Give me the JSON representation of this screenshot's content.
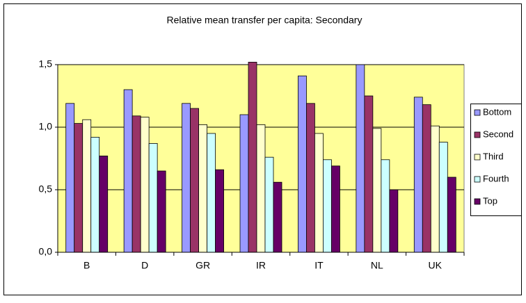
{
  "chart_data": {
    "type": "bar",
    "title": "Relative mean transfer per capita: Secondary",
    "categories": [
      "B",
      "D",
      "GR",
      "IR",
      "IT",
      "NL",
      "UK"
    ],
    "series": [
      {
        "name": "Bottom",
        "color": "#9999ff",
        "values": [
          1.19,
          1.3,
          1.19,
          1.1,
          1.41,
          1.5,
          1.24
        ]
      },
      {
        "name": "Second",
        "color": "#993366",
        "values": [
          1.03,
          1.09,
          1.15,
          1.52,
          1.19,
          1.25,
          1.18
        ]
      },
      {
        "name": "Third",
        "color": "#ffffcc",
        "values": [
          1.06,
          1.08,
          1.02,
          1.02,
          0.95,
          0.99,
          1.01
        ]
      },
      {
        "name": "Fourth",
        "color": "#ccffff",
        "values": [
          0.92,
          0.87,
          0.95,
          0.76,
          0.74,
          0.74,
          0.88
        ]
      },
      {
        "name": "Top",
        "color": "#660066",
        "values": [
          0.77,
          0.65,
          0.66,
          0.56,
          0.69,
          0.5,
          0.6
        ]
      }
    ],
    "ylim": [
      0,
      1.5
    ],
    "yticks": [
      {
        "value": 0,
        "label": "0,0"
      },
      {
        "value": 0.5,
        "label": "0,5"
      },
      {
        "value": 1,
        "label": "1,0"
      },
      {
        "value": 1.5,
        "label": "1,5"
      }
    ],
    "grid": true,
    "plot_background": "#ffff99",
    "legend": "right"
  }
}
